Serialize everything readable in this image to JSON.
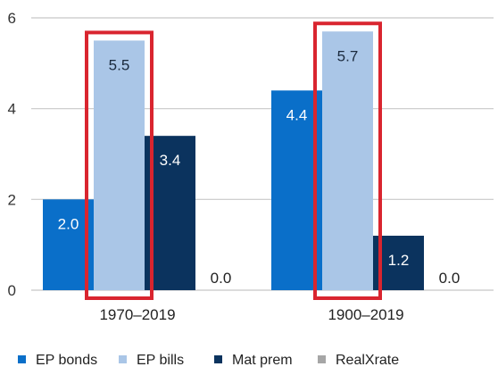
{
  "chart_data": {
    "type": "bar",
    "categories": [
      "1970–2019",
      "1900–2019"
    ],
    "series": [
      {
        "name": "EP bonds",
        "values": [
          2.0,
          4.4
        ],
        "labels": [
          "2.0",
          "4.4"
        ],
        "color": "#0a6fc9",
        "label_color": "#ffffff"
      },
      {
        "name": "EP bills",
        "values": [
          5.5,
          5.7
        ],
        "labels": [
          "5.5",
          "5.7"
        ],
        "color": "#aac6e7",
        "label_color": "#1b2a3d"
      },
      {
        "name": "Mat prem",
        "values": [
          3.4,
          1.2
        ],
        "labels": [
          "3.4",
          "1.2"
        ],
        "color": "#0b335e",
        "label_color": "#ffffff"
      },
      {
        "name": "RealXrate",
        "values": [
          0.0,
          0.0
        ],
        "labels": [
          "0.0",
          "0.0"
        ],
        "color": "#a6a6a6",
        "label_color": "#222222"
      }
    ],
    "y_ticks": [
      "0",
      "2",
      "4",
      "6"
    ],
    "ylim": [
      0,
      6
    ],
    "grid": true,
    "legend_position": "bottom",
    "highlight_series": "EP bills",
    "highlight_color": "#d9252f"
  }
}
